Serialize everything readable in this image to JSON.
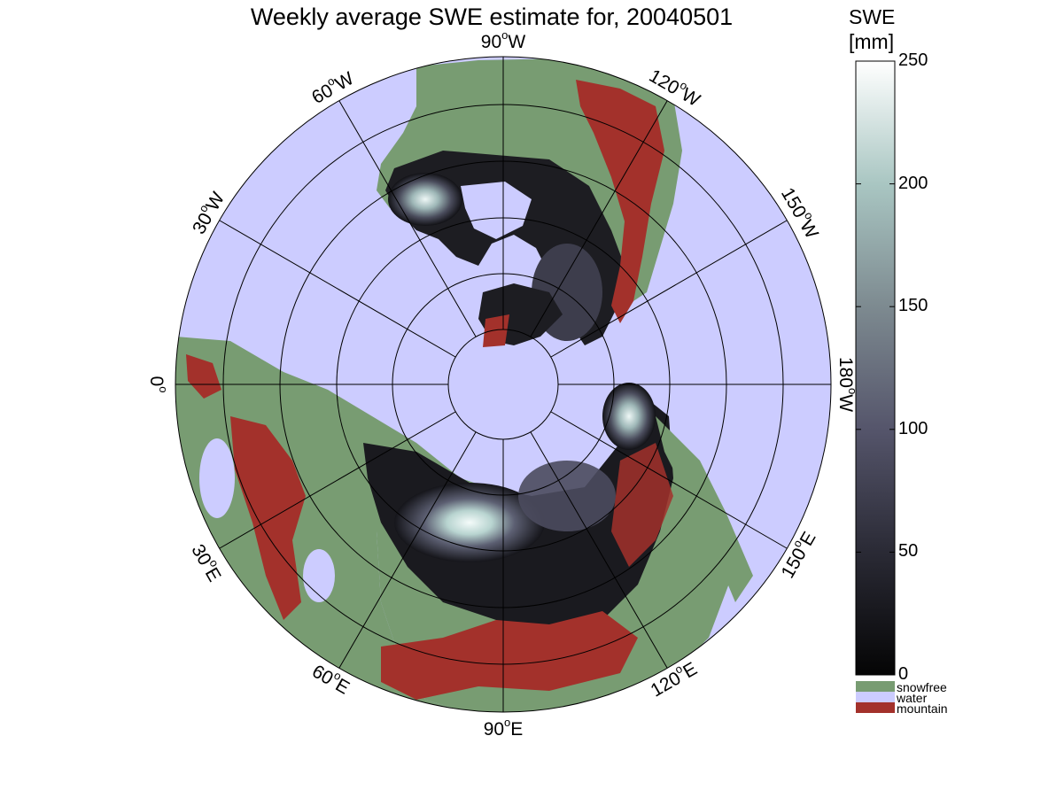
{
  "title": "Weekly average SWE estimate for, 20040501",
  "colorbar": {
    "label_line1": "SWE",
    "label_line2": "[mm]",
    "ticks": [
      "250",
      "200",
      "150",
      "100",
      "50",
      "0"
    ],
    "tick_values": [
      250,
      200,
      150,
      100,
      50,
      0
    ],
    "min": 0,
    "max": 250,
    "colormap": [
      "#050505",
      "#2a2a35",
      "#55556b",
      "#7d8a90",
      "#a9c6c2",
      "#ffffff"
    ]
  },
  "legend": [
    {
      "label": "snowfree",
      "color": "#789c72"
    },
    {
      "label": "water",
      "color": "#ccccff"
    },
    {
      "label": "mountain",
      "color": "#a3312b"
    }
  ],
  "map": {
    "projection": "north polar stereographic",
    "ocean_color": "#ccccff",
    "lat_circles_deg": [
      80,
      70,
      60,
      50,
      40
    ],
    "meridian_labels": [
      {
        "deg": "90",
        "dir": "W"
      },
      {
        "deg": "120",
        "dir": "W"
      },
      {
        "deg": "150",
        "dir": "W"
      },
      {
        "deg": "180",
        "dir": "W"
      },
      {
        "deg": "150",
        "dir": "E"
      },
      {
        "deg": "120",
        "dir": "E"
      },
      {
        "deg": "90",
        "dir": "E"
      },
      {
        "deg": "60",
        "dir": "E"
      },
      {
        "deg": "30",
        "dir": "E"
      },
      {
        "deg": "0",
        "dir": ""
      },
      {
        "deg": "30",
        "dir": "W"
      },
      {
        "deg": "60",
        "dir": "W"
      }
    ]
  }
}
